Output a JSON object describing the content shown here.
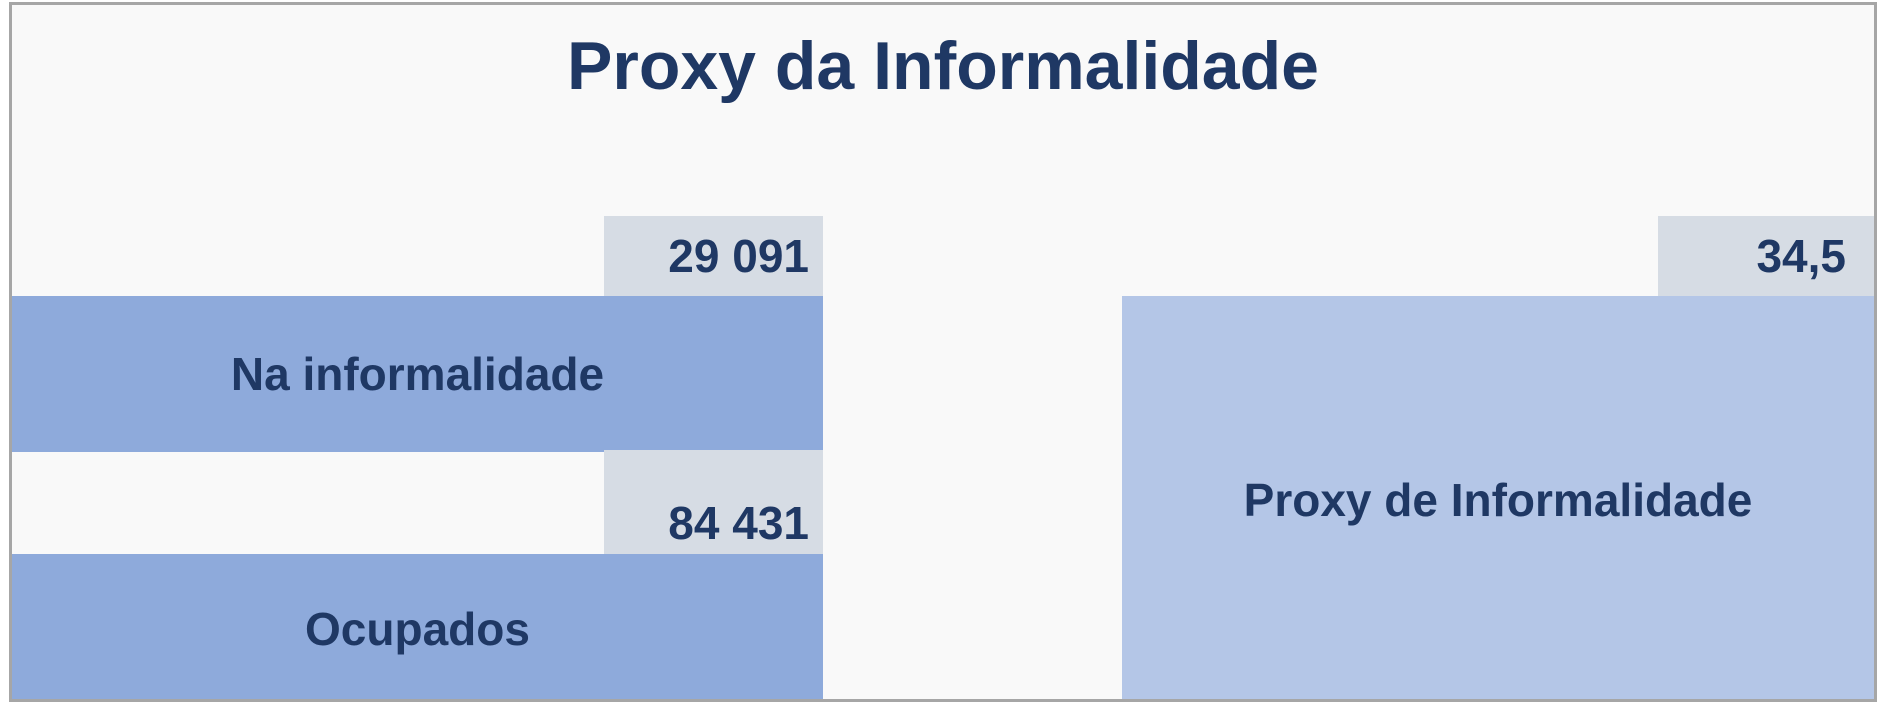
{
  "title": "Proxy da Informalidade",
  "cards": [
    {
      "label": "Na informalidade",
      "value": "29 091"
    },
    {
      "label": "Ocupados",
      "value": "84 431"
    },
    {
      "label": "Proxy de Informalidade",
      "value": "34,5"
    }
  ]
}
